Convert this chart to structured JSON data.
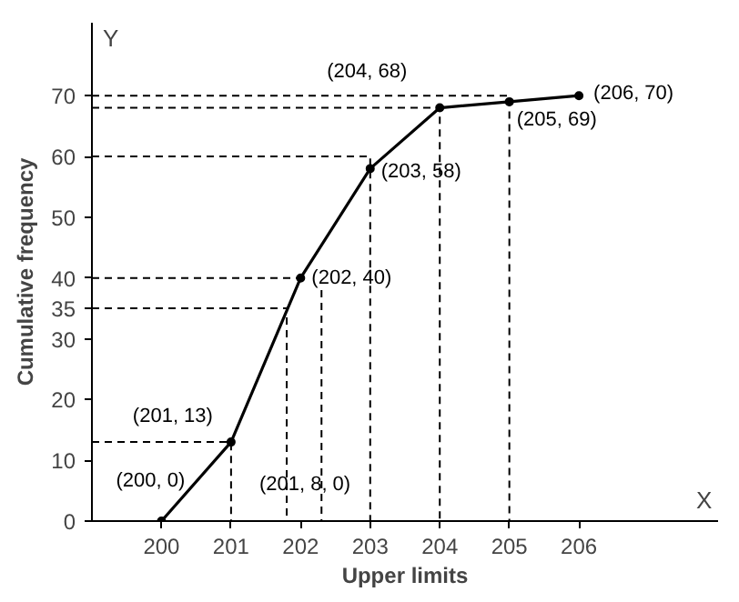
{
  "chart_data": {
    "type": "line",
    "xlabel": "Upper limits",
    "ylabel": "Cumulative frequency",
    "x": [
      200,
      201,
      202,
      203,
      204,
      205,
      206
    ],
    "series": [
      {
        "color": "#000000",
        "values": [
          0,
          13,
          40,
          58,
          68,
          69,
          70
        ],
        "marker": "circle",
        "line_style": "solid"
      },
      {
        "color": "#000000",
        "x": [
          199,
          201,
          201
        ],
        "values": [
          13,
          13,
          0
        ],
        "marker": "none",
        "line_style": "dashed"
      },
      {
        "color": "#000000",
        "x": [
          199,
          201.8,
          201.8
        ],
        "values": [
          35,
          35,
          0
        ],
        "marker": "none",
        "line_style": "dashed"
      },
      {
        "color": "#000000",
        "x": [
          199,
          202
        ],
        "values": [
          40,
          40
        ],
        "marker": "none",
        "line_style": "dashed"
      },
      {
        "color": "#000000",
        "x": [
          202.3,
          202.3
        ],
        "values": [
          38,
          0
        ],
        "marker": "none",
        "line_style": "dashed"
      },
      {
        "color": "#000000",
        "x": [
          199,
          203,
          203
        ],
        "values": [
          60,
          60,
          0
        ],
        "marker": "none",
        "line_style": "dashed"
      },
      {
        "color": "#000000",
        "x": [
          199,
          204,
          204
        ],
        "values": [
          68,
          68,
          0
        ],
        "marker": "none",
        "line_style": "dashed"
      },
      {
        "color": "#000000",
        "x": [
          199,
          205,
          205
        ],
        "values": [
          70,
          70,
          0
        ],
        "marker": "none",
        "line_style": "dashed"
      }
    ],
    "xlim": [
      199,
      208
    ],
    "ylim": [
      0,
      82
    ],
    "xticks": [
      200,
      201,
      202,
      203,
      204,
      205,
      206
    ],
    "yticks": [
      0,
      10,
      20,
      30,
      35,
      40,
      50,
      60,
      70
    ],
    "grid": false,
    "annotations": [
      {
        "text": "(200, 0)",
        "x": 200,
        "y": 0
      },
      {
        "text": "(201, 13)",
        "x": 201,
        "y": 13
      },
      {
        "text": "(201, 8, 0)",
        "x": 201.8,
        "y": 0
      },
      {
        "text": "(202, 40)",
        "x": 202,
        "y": 40
      },
      {
        "text": "(203, 58)",
        "x": 203,
        "y": 58
      },
      {
        "text": "(204, 68)",
        "x": 204,
        "y": 68
      },
      {
        "text": "(205, 69)",
        "x": 205,
        "y": 69
      },
      {
        "text": "(206, 70)",
        "x": 206,
        "y": 70
      },
      "X",
      "Y"
    ]
  }
}
